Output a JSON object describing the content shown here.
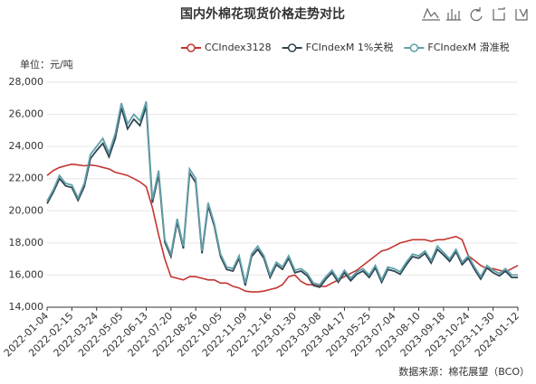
{
  "chart_data": {
    "type": "line",
    "title": "国内外棉花现货价格走势对比",
    "y_unit_label": "单位：元/吨",
    "source": "数据来源：棉花展望（BCO）",
    "categories": [
      "2022-01-04",
      null,
      null,
      null,
      "2022-02-15",
      null,
      null,
      null,
      "2022-03-24",
      null,
      null,
      null,
      "2022-05-05",
      null,
      null,
      null,
      "2022-06-13",
      null,
      null,
      null,
      "2022-07-20",
      null,
      null,
      null,
      "2022-08-26",
      null,
      null,
      null,
      "2022-10-05",
      null,
      null,
      null,
      "2022-11-09",
      null,
      null,
      null,
      "2022-12-16",
      null,
      null,
      null,
      "2023-01-30",
      null,
      null,
      null,
      "2023-03-08",
      null,
      null,
      null,
      "2023-04-17",
      null,
      null,
      null,
      "2023-05-25",
      null,
      null,
      null,
      "2023-07-04",
      null,
      null,
      null,
      "2023-08-10",
      null,
      null,
      null,
      "2023-09-18",
      null,
      null,
      null,
      "2023-10-24",
      null,
      null,
      null,
      "2023-11-30",
      null,
      null,
      null,
      "2024-01-12"
    ],
    "series": [
      {
        "name": "CCIndex3128",
        "color": "#c23531",
        "values": [
          22200,
          22500,
          22700,
          22800,
          22900,
          22850,
          22800,
          22850,
          22800,
          22700,
          22600,
          22400,
          22300,
          22200,
          22000,
          21800,
          21500,
          20200,
          18500,
          17000,
          15900,
          15800,
          15700,
          15900,
          15900,
          15800,
          15700,
          15700,
          15500,
          15500,
          15300,
          15200,
          15000,
          14950,
          14950,
          15000,
          15100,
          15200,
          15400,
          15900,
          16000,
          15600,
          15400,
          15400,
          15300,
          15300,
          15500,
          15700,
          15900,
          16100,
          16300,
          16600,
          16900,
          17200,
          17500,
          17600,
          17800,
          18000,
          18100,
          18200,
          18200,
          18200,
          18100,
          18200,
          18200,
          18300,
          18400,
          18200,
          17200,
          16900,
          16600,
          16400,
          16400,
          16300,
          16200,
          16400,
          16600
        ]
      },
      {
        "name": "FCIndexM 1%关税",
        "color": "#2f4554",
        "values": [
          20450,
          21150,
          22000,
          21550,
          21450,
          20650,
          21500,
          23250,
          23750,
          24200,
          23350,
          24500,
          26400,
          25100,
          25700,
          25300,
          26500,
          20500,
          22250,
          18050,
          17150,
          19300,
          17650,
          22350,
          21750,
          17350,
          20300,
          19050,
          17150,
          16350,
          16250,
          17050,
          15350,
          17150,
          17600,
          17050,
          15850,
          16650,
          16350,
          17050,
          16150,
          16250,
          15950,
          15350,
          15250,
          15750,
          16150,
          15550,
          16150,
          15650,
          16050,
          16250,
          15850,
          16450,
          15550,
          16350,
          16250,
          16050,
          16650,
          17150,
          17050,
          17350,
          16750,
          17600,
          17250,
          16850,
          17450,
          16650,
          17050,
          16350,
          15750,
          16450,
          16150,
          15950,
          16250,
          15850,
          15850
        ]
      },
      {
        "name": "FCIndexM 滑准税",
        "color": "#61a0a8",
        "values": [
          20600,
          21300,
          22200,
          21700,
          21600,
          20800,
          21700,
          23500,
          24000,
          24500,
          23600,
          24800,
          26700,
          25400,
          26000,
          25600,
          26800,
          20700,
          22500,
          18200,
          17300,
          19500,
          17800,
          22600,
          22000,
          17500,
          20500,
          19200,
          17300,
          16500,
          16400,
          17200,
          15500,
          17300,
          17800,
          17200,
          16000,
          16800,
          16500,
          17200,
          16300,
          16400,
          16100,
          15500,
          15400,
          15900,
          16300,
          15700,
          16300,
          15800,
          16200,
          16400,
          16000,
          16600,
          15700,
          16500,
          16400,
          16200,
          16800,
          17300,
          17200,
          17500,
          16900,
          17800,
          17400,
          17000,
          17600,
          16800,
          17200,
          16500,
          15900,
          16600,
          16300,
          16100,
          16400,
          16000,
          16000
        ]
      }
    ],
    "ylim": [
      14000,
      28000
    ],
    "yticks": [
      {
        "value": 14000,
        "label": "14,000"
      },
      {
        "value": 16000,
        "label": "16,000"
      },
      {
        "value": 18000,
        "label": "18,000"
      },
      {
        "value": 20000,
        "label": "20,000"
      },
      {
        "value": 22000,
        "label": "22,000"
      },
      {
        "value": 24000,
        "label": "24,000"
      },
      {
        "value": 26000,
        "label": "26,000"
      },
      {
        "value": 28000,
        "label": "28,000"
      }
    ],
    "grid": true
  }
}
